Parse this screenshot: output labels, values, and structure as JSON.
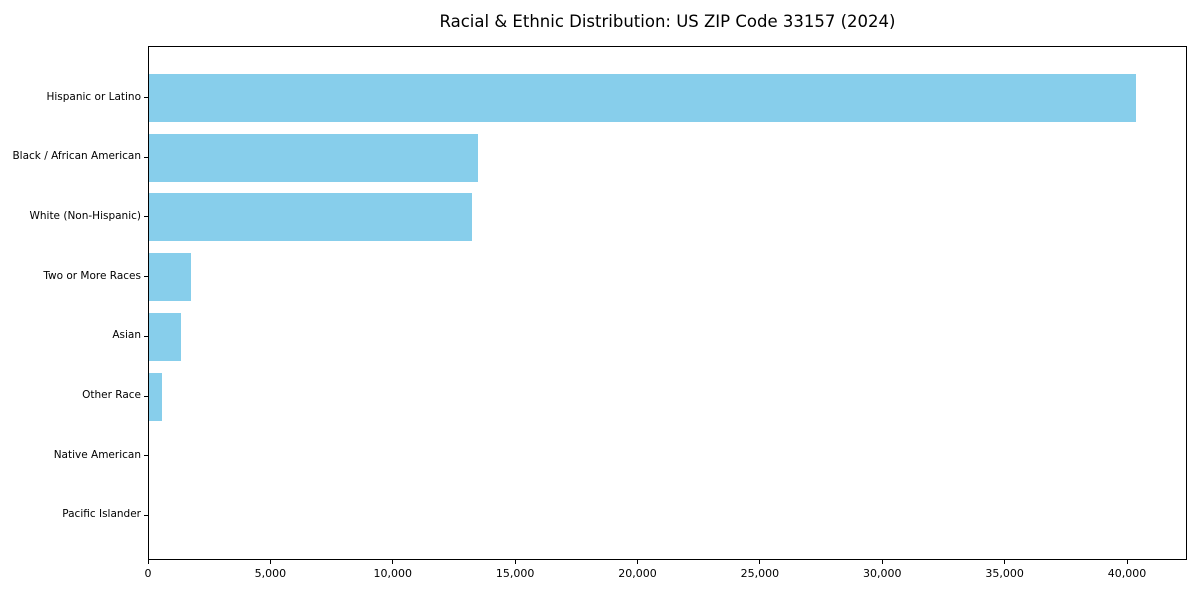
{
  "chart_data": {
    "type": "bar",
    "orientation": "horizontal",
    "title": "Racial & Ethnic Distribution: US ZIP Code 33157 (2024)",
    "categories": [
      "Hispanic or Latino",
      "Black / African American",
      "White (Non-Hispanic)",
      "Two or More Races",
      "Asian",
      "Other Race",
      "Native American",
      "Pacific Islander"
    ],
    "values": [
      40340,
      13440,
      13190,
      1730,
      1310,
      550,
      0,
      0
    ],
    "xlabel": "",
    "ylabel": "",
    "xlim": [
      0,
      42450
    ],
    "x_ticks": [
      0,
      5000,
      10000,
      15000,
      20000,
      25000,
      30000,
      35000,
      40000
    ],
    "x_tick_labels": [
      "0",
      "5,000",
      "10,000",
      "15,000",
      "20,000",
      "25,000",
      "30,000",
      "35,000",
      "40,000"
    ],
    "bar_color": "#87CEEB",
    "grid": false,
    "legend": null,
    "background_color": "#ffffff",
    "axis_color": "#000000",
    "text_color": "#000000"
  }
}
